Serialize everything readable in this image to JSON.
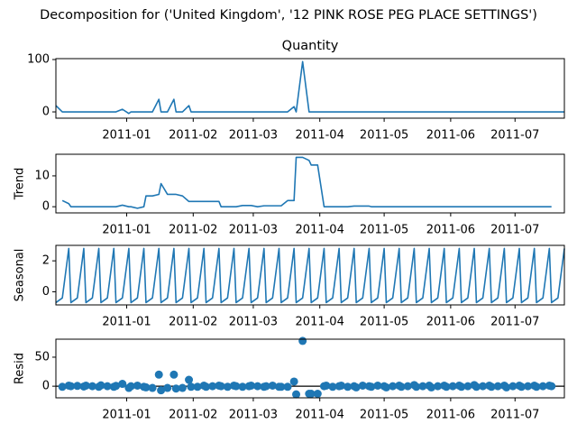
{
  "title": "Decomposition for ('United Kingdom', '12 PINK ROSE PEG PLACE SETTINGS')",
  "x": [
    -2,
    1,
    4,
    5,
    8,
    11,
    12,
    15,
    18,
    19,
    22,
    25,
    26,
    29,
    32,
    33,
    36,
    39,
    40,
    43,
    46,
    47,
    50,
    53,
    54,
    57,
    60,
    61,
    64,
    67,
    68,
    71,
    74,
    75,
    78,
    81,
    82,
    85,
    88,
    89,
    92,
    95,
    96,
    99,
    102,
    103,
    106,
    109,
    110,
    113,
    116,
    117,
    120,
    123,
    124,
    127,
    130,
    131,
    134,
    137,
    138,
    141,
    144,
    145,
    148,
    151,
    152,
    155,
    158,
    159,
    162,
    165,
    166,
    169,
    172,
    173,
    176,
    179,
    180,
    183,
    186,
    187,
    190,
    193,
    194,
    197,
    200,
    201,
    204,
    207,
    208,
    211,
    214,
    215,
    218,
    221,
    222,
    225,
    228,
    229,
    232,
    235
  ],
  "xlim": [
    -2,
    235
  ],
  "xticks": [
    {
      "value": 31,
      "label": "2011-01"
    },
    {
      "value": 62,
      "label": "2011-02"
    },
    {
      "value": 90,
      "label": "2011-03"
    },
    {
      "value": 121,
      "label": "2011-04"
    },
    {
      "value": 151,
      "label": "2011-05"
    },
    {
      "value": 182,
      "label": "2011-06"
    },
    {
      "value": 212,
      "label": "2011-07"
    }
  ],
  "chart_data": [
    {
      "type": "line",
      "title": "Quantity",
      "color": "#1f77b4",
      "ylim": [
        -12,
        101.7
      ],
      "yticks": [
        0,
        100
      ],
      "values": [
        12,
        0,
        0,
        0,
        0,
        0,
        0,
        0,
        0,
        0,
        0,
        0,
        0,
        5,
        -3,
        0,
        0,
        0,
        0,
        0,
        24,
        0,
        0,
        24,
        0,
        0,
        12,
        0,
        0,
        0,
        0,
        0,
        0,
        0,
        0,
        0,
        0,
        0,
        0,
        0,
        0,
        0,
        0,
        0,
        0,
        0,
        0,
        10,
        0,
        96,
        0,
        0,
        0,
        0,
        0,
        0,
        0,
        0,
        0,
        0,
        0,
        0,
        0,
        0,
        0,
        0,
        0,
        0,
        0,
        0,
        0,
        0,
        0,
        0,
        0,
        0,
        0,
        0,
        0,
        0,
        0,
        0,
        0,
        0,
        0,
        0,
        0,
        0,
        0,
        0,
        0,
        0,
        0,
        0,
        0,
        0,
        0,
        0,
        0,
        0,
        0,
        0
      ]
    },
    {
      "type": "line",
      "ylabel": "Trend",
      "color": "#1f77b4",
      "ylim": [
        -2,
        17
      ],
      "yticks": [
        0,
        10
      ],
      "values": [
        null,
        2,
        1,
        0,
        0,
        0,
        0,
        0,
        0,
        0,
        0,
        0,
        0,
        0.5,
        0,
        0,
        -0.5,
        0,
        3.5,
        3.5,
        4,
        7.5,
        4,
        4,
        4,
        3.5,
        1.7,
        1.7,
        1.7,
        1.7,
        1.7,
        1.7,
        1.7,
        0,
        0,
        0,
        0,
        0.4,
        0.4,
        0.4,
        0,
        0.3,
        0.3,
        0.3,
        0.3,
        0.3,
        2,
        2,
        16,
        16,
        15,
        13.5,
        13.5,
        0,
        0,
        0,
        0,
        0,
        0,
        0.2,
        0.2,
        0.2,
        0.2,
        0,
        0,
        0,
        0,
        0,
        0,
        0,
        0,
        0,
        0,
        0,
        0,
        0,
        0,
        0,
        0,
        0,
        0,
        0,
        0,
        0,
        0,
        0,
        0,
        0,
        0,
        0,
        0,
        0,
        0,
        0,
        0,
        0,
        0,
        0,
        0,
        0,
        null,
        null
      ]
    },
    {
      "type": "line",
      "ylabel": "Seasonal",
      "color": "#1f77b4",
      "ylim": [
        -0.85,
        3
      ],
      "yticks": [
        0,
        2
      ],
      "values": [
        -0.7,
        -0.4,
        2.8,
        -0.7,
        -0.4,
        2.8,
        -0.7,
        -0.4,
        2.8,
        -0.7,
        -0.4,
        2.8,
        -0.7,
        -0.4,
        2.8,
        -0.7,
        -0.4,
        2.8,
        -0.7,
        -0.4,
        2.8,
        -0.7,
        -0.4,
        2.8,
        -0.7,
        -0.4,
        2.8,
        -0.7,
        -0.4,
        2.8,
        -0.7,
        -0.4,
        2.8,
        -0.7,
        -0.4,
        2.8,
        -0.7,
        -0.4,
        2.8,
        -0.7,
        -0.4,
        2.8,
        -0.7,
        -0.4,
        2.8,
        -0.7,
        -0.4,
        2.8,
        -0.7,
        -0.4,
        2.8,
        -0.7,
        -0.4,
        2.8,
        -0.7,
        -0.4,
        2.8,
        -0.7,
        -0.4,
        2.8,
        -0.7,
        -0.4,
        2.8,
        -0.7,
        -0.4,
        2.8,
        -0.7,
        -0.4,
        2.8,
        -0.7,
        -0.4,
        2.8,
        -0.7,
        -0.4,
        2.8,
        -0.7,
        -0.4,
        2.8,
        -0.7,
        -0.4,
        2.8,
        -0.7,
        -0.4,
        2.8,
        -0.7,
        -0.4,
        2.8,
        -0.7,
        -0.4,
        2.8,
        -0.7,
        -0.4,
        2.8,
        -0.7,
        -0.4,
        2.8,
        -0.7,
        -0.4,
        2.8,
        -0.7,
        -0.4,
        2.8
      ]
    },
    {
      "type": "scatter",
      "ylabel": "Resid",
      "color": "#1f77b4",
      "ylim": [
        -20,
        81
      ],
      "yticks": [
        0,
        50
      ],
      "values": [
        null,
        -1,
        1,
        0,
        0.5,
        -0.5,
        1,
        0,
        -1,
        1.5,
        0,
        -1,
        0.5,
        4,
        -3,
        0,
        1,
        -1,
        -2,
        -3,
        20,
        -7,
        -3,
        20,
        -4,
        -3,
        11,
        -1,
        -1,
        1,
        -1,
        0,
        1,
        0,
        -1,
        1,
        0,
        -1,
        0,
        1,
        0,
        -1,
        0,
        1,
        -1,
        -1,
        -1,
        8,
        -14,
        78,
        -13,
        -13,
        -13,
        0,
        1,
        -1,
        0,
        1,
        -1,
        0,
        -2,
        1,
        0,
        -1,
        1,
        0,
        -2,
        0,
        1,
        -1,
        0,
        2,
        -1,
        0,
        1,
        -2,
        0,
        1,
        -1,
        0,
        1,
        -1,
        0,
        2,
        -1,
        0,
        1,
        -1,
        0,
        1,
        -2,
        0,
        1,
        -1,
        0,
        1,
        -1,
        0,
        1,
        0,
        null,
        null
      ]
    }
  ]
}
